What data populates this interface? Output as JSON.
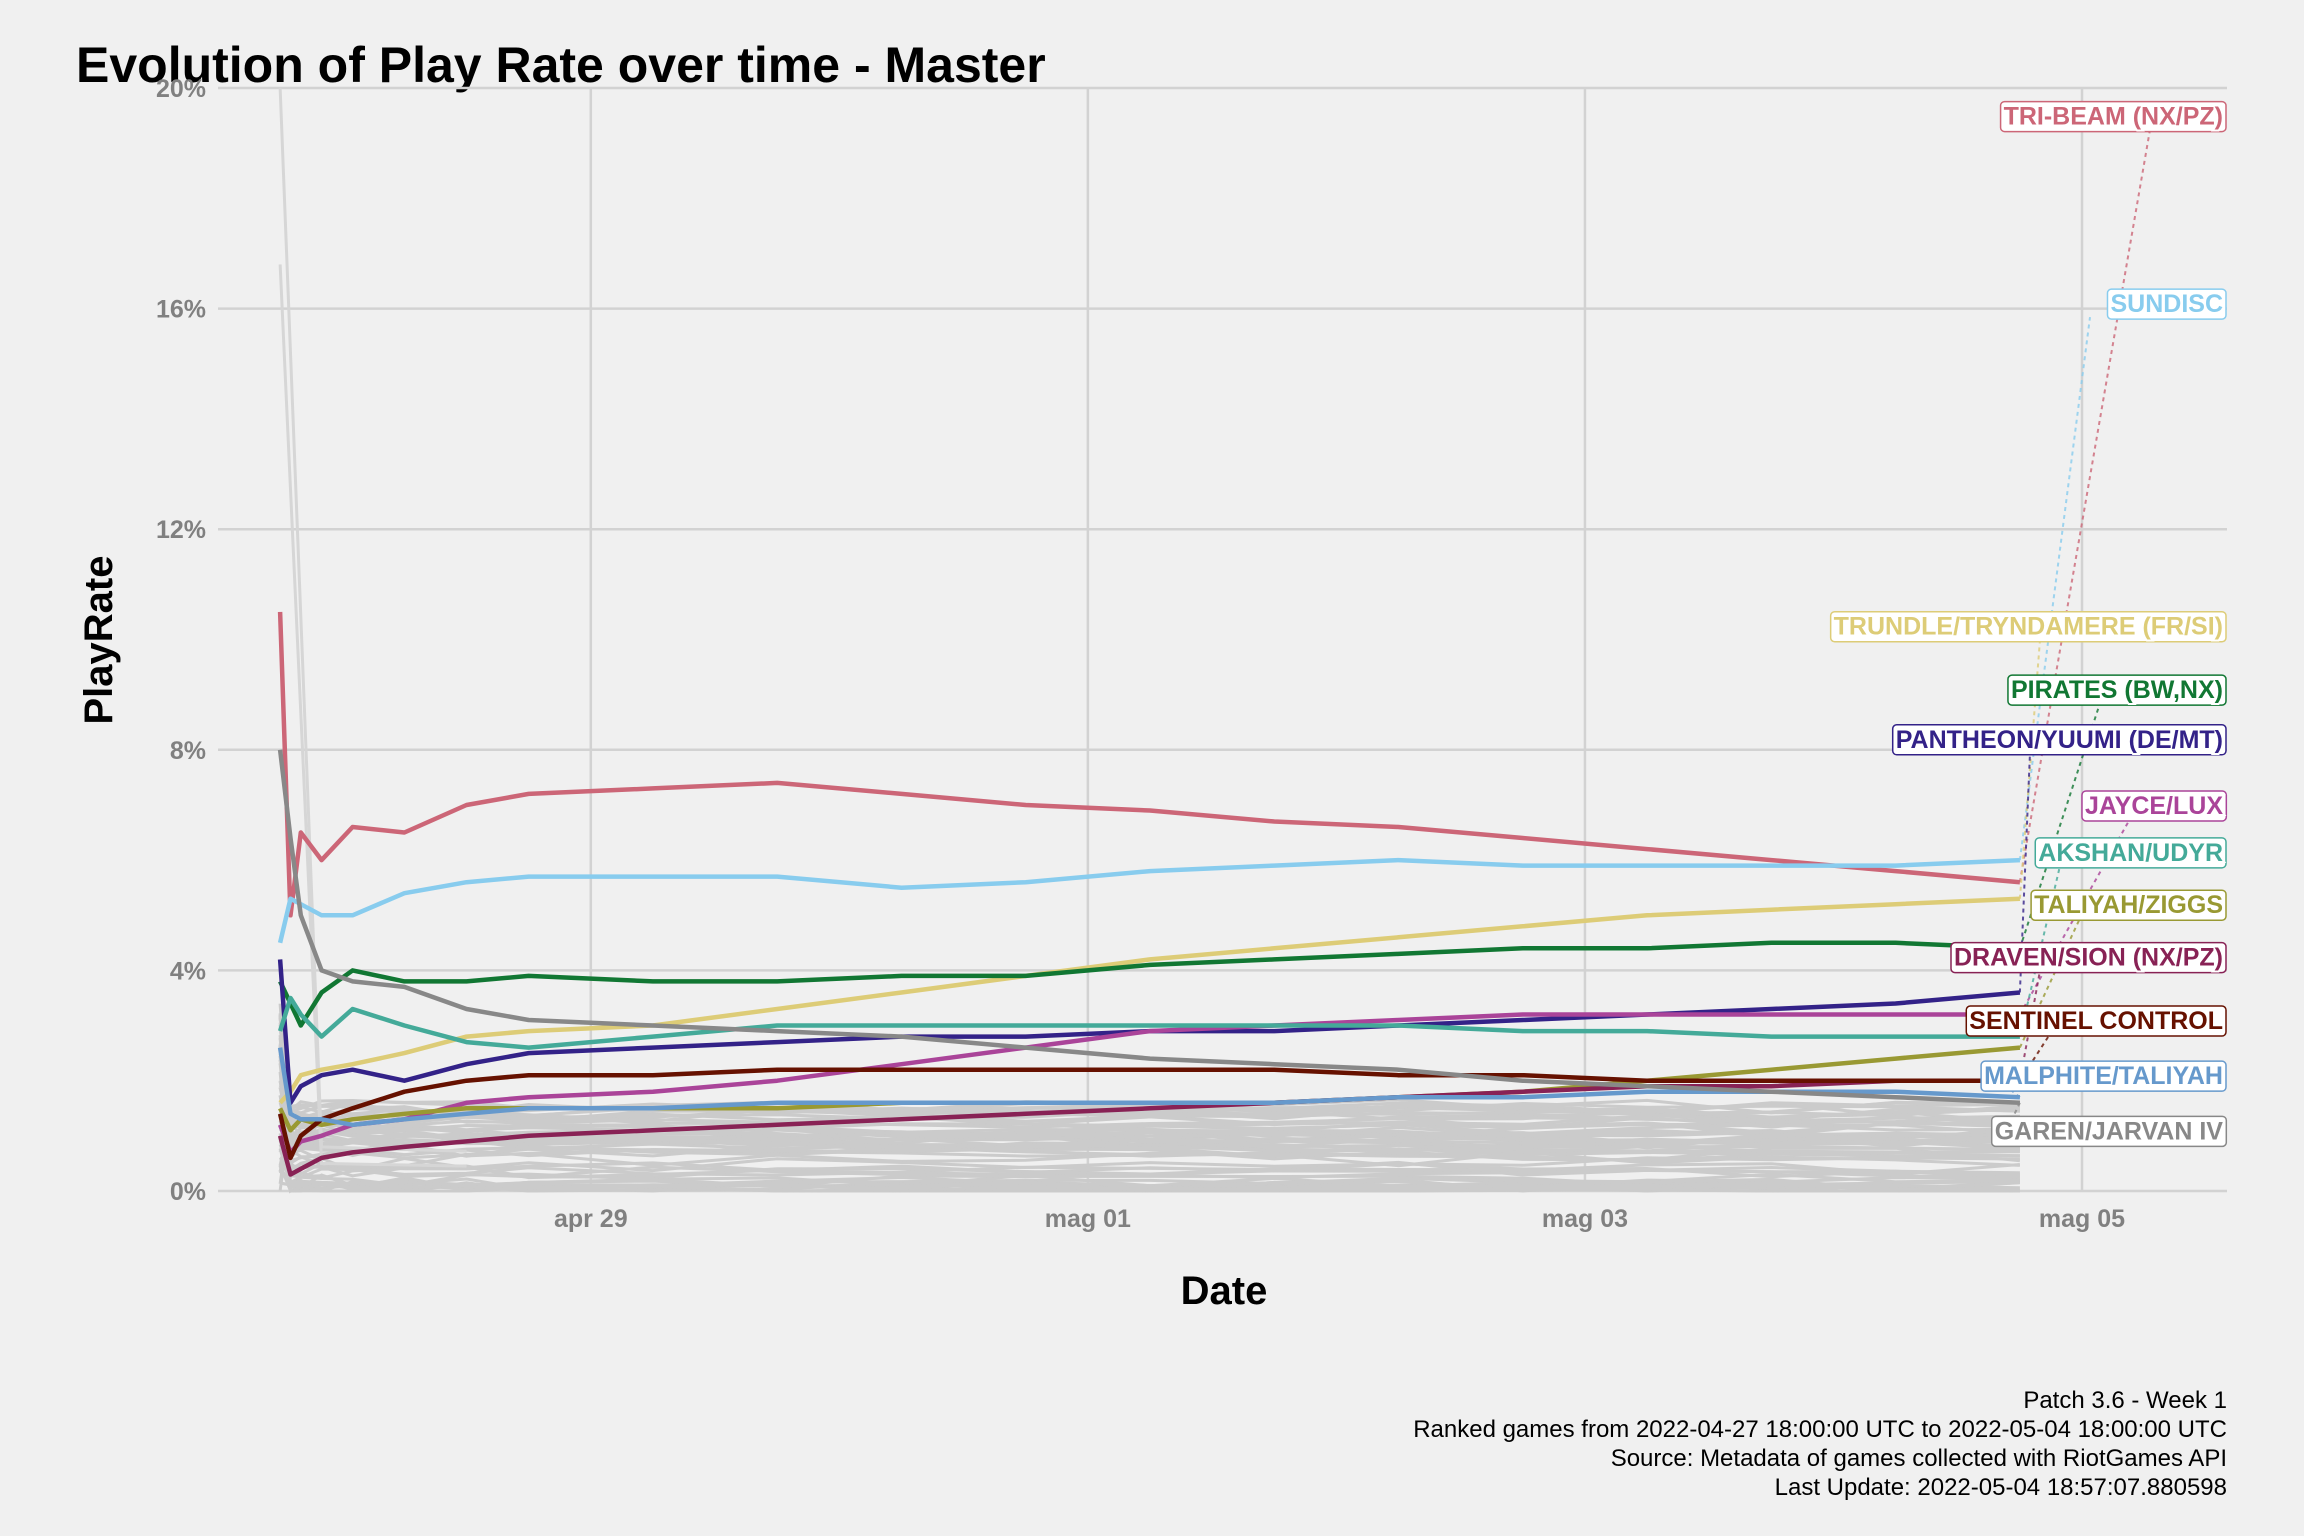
{
  "chart_data": {
    "type": "line",
    "title": "Evolution of Play Rate over time - Master",
    "xlabel": "Date",
    "ylabel": "PlayRate",
    "x_ticks": [
      "apr 29",
      "mag 01",
      "mag 03",
      "mag 05"
    ],
    "y_ticks": [
      "0%",
      "4%",
      "8%",
      "12%",
      "16%",
      "20%"
    ],
    "ylim": [
      0,
      20
    ],
    "xlim": [
      "2022-04-27T12:00",
      "2022-05-05T14:00"
    ],
    "grid": true,
    "legend": "none",
    "caption": [
      "Patch 3.6 - Week 1",
      "Ranked games from 2022-04-27 18:00:00 UTC to 2022-05-04 18:00:00 UTC",
      "Source: Metadata of games collected with RiotGames API",
      "Last Update: 2022-05-04 18:57:07.880598"
    ],
    "x": [
      "2022-04-27T18:00",
      "2022-04-27T19:00",
      "2022-04-27T20:00",
      "2022-04-27T22:00",
      "2022-04-28T01:00",
      "2022-04-28T06:00",
      "2022-04-28T12:00",
      "2022-04-28T18:00",
      "2022-04-29T06:00",
      "2022-04-29T18:00",
      "2022-04-30T06:00",
      "2022-04-30T18:00",
      "2022-05-01T06:00",
      "2022-05-01T18:00",
      "2022-05-02T06:00",
      "2022-05-02T18:00",
      "2022-05-03T06:00",
      "2022-05-03T18:00",
      "2022-05-04T06:00",
      "2022-05-04T18:00"
    ],
    "series": [
      {
        "name": "TRI-BEAM (NX/PZ)",
        "color": "#cc6677",
        "values": [
          10.5,
          5.0,
          6.5,
          6.0,
          6.6,
          6.5,
          7.0,
          7.2,
          7.3,
          7.4,
          7.2,
          7.0,
          6.9,
          6.7,
          6.6,
          6.4,
          6.2,
          6.0,
          5.8,
          5.6
        ]
      },
      {
        "name": "SUNDISC",
        "color": "#88ccee",
        "values": [
          4.5,
          5.3,
          5.2,
          5.0,
          5.0,
          5.4,
          5.6,
          5.7,
          5.7,
          5.7,
          5.5,
          5.6,
          5.8,
          5.9,
          6.0,
          5.9,
          5.9,
          5.9,
          5.9,
          6.0
        ]
      },
      {
        "name": "TRUNDLE/TRYNDAMERE (FR/SI)",
        "color": "#ddcc77",
        "values": [
          1.6,
          1.8,
          2.1,
          2.2,
          2.3,
          2.5,
          2.8,
          2.9,
          3.0,
          3.3,
          3.6,
          3.9,
          4.2,
          4.4,
          4.6,
          4.8,
          5.0,
          5.1,
          5.2,
          5.3
        ]
      },
      {
        "name": "PIRATES (BW,NX)",
        "color": "#117733",
        "values": [
          3.8,
          3.4,
          3.0,
          3.6,
          4.0,
          3.8,
          3.8,
          3.9,
          3.8,
          3.8,
          3.9,
          3.9,
          4.1,
          4.2,
          4.3,
          4.4,
          4.4,
          4.5,
          4.5,
          4.4
        ]
      },
      {
        "name": "PANTHEON/YUUMI (DE/MT)",
        "color": "#332288",
        "values": [
          4.2,
          1.6,
          1.9,
          2.1,
          2.2,
          2.0,
          2.3,
          2.5,
          2.6,
          2.7,
          2.8,
          2.8,
          2.9,
          2.9,
          3.0,
          3.1,
          3.2,
          3.3,
          3.4,
          3.6
        ]
      },
      {
        "name": "JAYCE/LUX",
        "color": "#aa4499",
        "values": [
          1.2,
          0.7,
          0.9,
          1.0,
          1.2,
          1.3,
          1.6,
          1.7,
          1.8,
          2.0,
          2.3,
          2.6,
          2.9,
          3.0,
          3.1,
          3.2,
          3.2,
          3.2,
          3.2,
          3.2
        ]
      },
      {
        "name": "AKSHAN/UDYR",
        "color": "#44aa99",
        "values": [
          2.9,
          3.5,
          3.2,
          2.8,
          3.3,
          3.0,
          2.7,
          2.6,
          2.8,
          3.0,
          3.0,
          3.0,
          3.0,
          3.0,
          3.0,
          2.9,
          2.9,
          2.8,
          2.8,
          2.8
        ]
      },
      {
        "name": "TALIYAH/ZIGGS",
        "color": "#999933",
        "values": [
          1.5,
          1.1,
          1.3,
          1.2,
          1.3,
          1.4,
          1.5,
          1.5,
          1.5,
          1.5,
          1.6,
          1.6,
          1.6,
          1.6,
          1.7,
          1.8,
          2.0,
          2.2,
          2.4,
          2.6
        ]
      },
      {
        "name": "DRAVEN/SION (NX/PZ)",
        "color": "#882255",
        "values": [
          1.0,
          0.3,
          0.4,
          0.6,
          0.7,
          0.8,
          0.9,
          1.0,
          1.1,
          1.2,
          1.3,
          1.4,
          1.5,
          1.6,
          1.7,
          1.8,
          1.9,
          1.9,
          2.0,
          2.0
        ]
      },
      {
        "name": "SENTINEL CONTROL",
        "color": "#661100",
        "values": [
          1.4,
          0.6,
          1.0,
          1.3,
          1.5,
          1.8,
          2.0,
          2.1,
          2.1,
          2.2,
          2.2,
          2.2,
          2.2,
          2.2,
          2.1,
          2.1,
          2.0,
          2.0,
          2.0,
          2.0
        ]
      },
      {
        "name": "MALPHITE/TALIYAH",
        "color": "#6699cc",
        "values": [
          2.6,
          1.4,
          1.3,
          1.3,
          1.2,
          1.3,
          1.4,
          1.5,
          1.5,
          1.6,
          1.6,
          1.6,
          1.6,
          1.6,
          1.7,
          1.7,
          1.8,
          1.8,
          1.8,
          1.7
        ]
      },
      {
        "name": "GAREN/JARVAN IV",
        "color": "#888888",
        "values": [
          8.0,
          6.4,
          5.0,
          4.0,
          3.8,
          3.7,
          3.3,
          3.1,
          3.0,
          2.9,
          2.8,
          2.6,
          2.4,
          2.3,
          2.2,
          2.0,
          1.9,
          1.8,
          1.7,
          1.6
        ]
      }
    ]
  }
}
